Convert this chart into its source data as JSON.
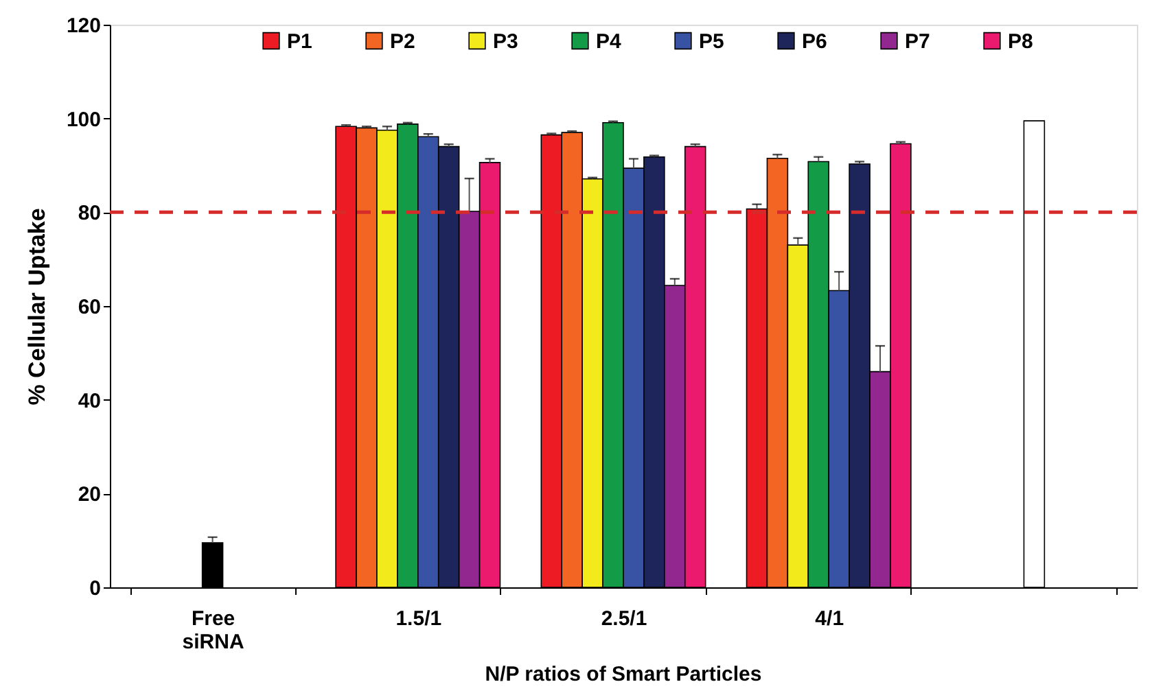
{
  "chart_data": {
    "type": "bar",
    "ylabel": "% Cellular Uptake",
    "categories": [
      "Free siRNA",
      "1.5/1",
      "2.5/1",
      "4/1",
      null
    ],
    "series": [
      {
        "color": "#000000",
        "values": [
          9.5,
          null,
          null,
          null,
          null
        ],
        "errors": [
          1.2,
          null,
          null,
          null,
          null
        ]
      },
      {
        "name": "P1",
        "color": "#ed1c24",
        "values": [
          null,
          98.3,
          96.5,
          80.7,
          null
        ],
        "errors": [
          null,
          0.3,
          0.3,
          1.0,
          null
        ]
      },
      {
        "name": "P2",
        "color": "#f26522",
        "values": [
          null,
          98.0,
          97.0,
          91.5,
          null
        ],
        "errors": [
          null,
          0.3,
          0.3,
          0.8,
          null
        ]
      },
      {
        "name": "P3",
        "color": "#f2ea1a",
        "values": [
          null,
          97.5,
          87.1,
          73.0,
          null
        ],
        "errors": [
          null,
          0.8,
          0.3,
          1.5,
          null
        ]
      },
      {
        "name": "P4",
        "color": "#139b48",
        "values": [
          null,
          98.8,
          99.1,
          90.8,
          null
        ],
        "errors": [
          null,
          0.3,
          0.3,
          1.0,
          null
        ]
      },
      {
        "name": "P5",
        "color": "#3953a4",
        "values": [
          null,
          96.1,
          89.4,
          63.3,
          null
        ],
        "errors": [
          null,
          0.6,
          2.0,
          4.0,
          null
        ]
      },
      {
        "name": "P6",
        "color": "#1e255b",
        "values": [
          null,
          94.0,
          91.8,
          90.3,
          null
        ],
        "errors": [
          null,
          0.5,
          0.3,
          0.5,
          null
        ]
      },
      {
        "name": "P7",
        "color": "#92278f",
        "values": [
          null,
          80.2,
          64.4,
          46.0,
          null
        ],
        "errors": [
          null,
          7.0,
          1.4,
          5.5,
          null
        ]
      },
      {
        "name": "P8",
        "color": "#ec1a6e",
        "values": [
          null,
          90.6,
          94.0,
          94.6,
          null
        ],
        "errors": [
          null,
          0.8,
          0.5,
          0.4,
          null
        ]
      },
      {
        "color": "#ffffff",
        "values": [
          null,
          null,
          null,
          null,
          99.5
        ]
      }
    ],
    "ylim": [
      0,
      120
    ],
    "yticks": [
      0,
      20,
      40,
      60,
      80,
      100,
      120
    ],
    "ref_lines": [
      {
        "axis": "y",
        "value": 80,
        "color": "#d62b2b",
        "line_style": "dashed"
      }
    ],
    "annotations": [
      "N/P ratios of Smart Particles"
    ],
    "legend": "top",
    "grid": false
  }
}
